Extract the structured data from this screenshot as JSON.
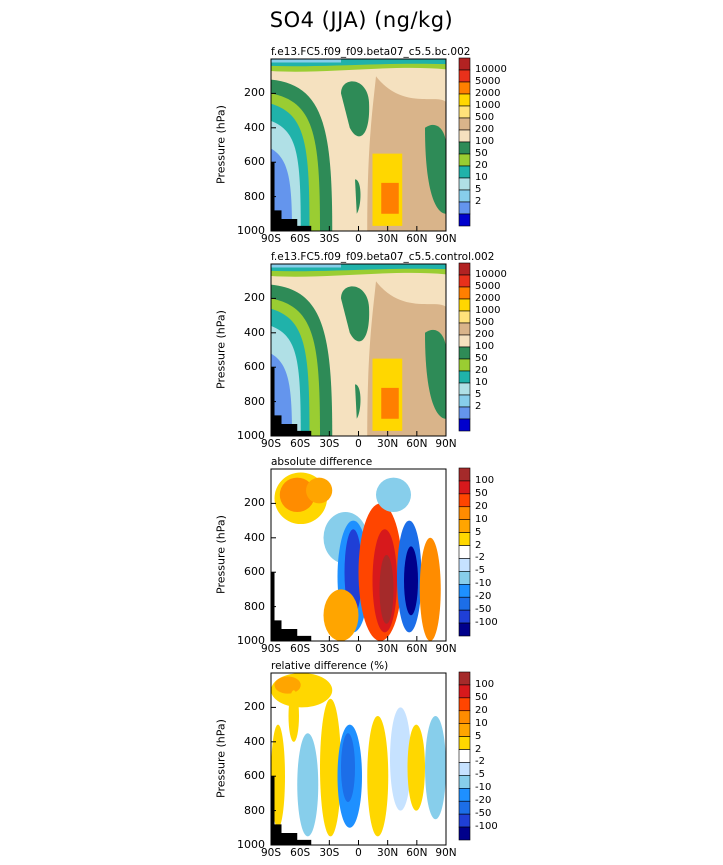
{
  "title": "SO4 (JJA) (ng/kg)",
  "chart_data": [
    {
      "type": "heatmap",
      "panel_title": "f.e13.FC5.f09_f09.beta07_c5.5.bc.002",
      "ylabel": "Pressure (hPa)",
      "xlabel": "",
      "xticks": [
        "90S",
        "60S",
        "30S",
        "0",
        "30N",
        "60N",
        "90N"
      ],
      "yticks": [
        "200",
        "400",
        "600",
        "800",
        "1000"
      ],
      "xlim": [
        -90,
        90
      ],
      "ylim": [
        1000,
        0
      ],
      "colorbar_levels": [
        "10000",
        "5000",
        "2000",
        "1000",
        "500",
        "200",
        "100",
        "50",
        "20",
        "10",
        "5",
        "2"
      ],
      "colorbar_colors": [
        "#b22222",
        "#e8311b",
        "#ff7f00",
        "#ffd700",
        "#ffe27a",
        "#d9b48a",
        "#f5e1bf",
        "#2e8b57",
        "#9acd32",
        "#20b2aa",
        "#b0e0e6",
        "#87ceeb",
        "#6495ed",
        "#0000cd"
      ]
    },
    {
      "type": "heatmap",
      "panel_title": "f.e13.FC5.f09_f09.beta07_c5.5.control.002",
      "ylabel": "Pressure (hPa)",
      "xlabel": "",
      "xticks": [
        "90S",
        "60S",
        "30S",
        "0",
        "30N",
        "60N",
        "90N"
      ],
      "yticks": [
        "200",
        "400",
        "600",
        "800",
        "1000"
      ],
      "xlim": [
        -90,
        90
      ],
      "ylim": [
        1000,
        0
      ],
      "colorbar_levels": [
        "10000",
        "5000",
        "2000",
        "1000",
        "500",
        "200",
        "100",
        "50",
        "20",
        "10",
        "5",
        "2"
      ],
      "colorbar_colors": [
        "#b22222",
        "#e8311b",
        "#ff7f00",
        "#ffd700",
        "#ffe27a",
        "#d9b48a",
        "#f5e1bf",
        "#2e8b57",
        "#9acd32",
        "#20b2aa",
        "#b0e0e6",
        "#87ceeb",
        "#6495ed",
        "#0000cd"
      ]
    },
    {
      "type": "heatmap",
      "panel_title": "absolute difference",
      "ylabel": "Pressure (hPa)",
      "xlabel": "",
      "xticks": [
        "90S",
        "60S",
        "30S",
        "0",
        "30N",
        "60N",
        "90N"
      ],
      "yticks": [
        "200",
        "400",
        "600",
        "800",
        "1000"
      ],
      "xlim": [
        -90,
        90
      ],
      "ylim": [
        1000,
        0
      ],
      "colorbar_levels": [
        "100",
        "50",
        "20",
        "10",
        "5",
        "2",
        "-2",
        "-5",
        "-10",
        "-20",
        "-50",
        "-100"
      ],
      "colorbar_colors": [
        "#a52a2a",
        "#d7191c",
        "#ff4500",
        "#ff8c00",
        "#ffa500",
        "#ffd700",
        "#ffffff",
        "#c6e2ff",
        "#87ceeb",
        "#1e90ff",
        "#1c6ee8",
        "#1f3fd6",
        "#00008b"
      ]
    },
    {
      "type": "heatmap",
      "panel_title": "relative difference (%)",
      "ylabel": "Pressure (hPa)",
      "xlabel": "",
      "xticks": [
        "90S",
        "60S",
        "30S",
        "0",
        "30N",
        "60N",
        "90N"
      ],
      "yticks": [
        "200",
        "400",
        "600",
        "800",
        "1000"
      ],
      "xlim": [
        -90,
        90
      ],
      "ylim": [
        1000,
        0
      ],
      "colorbar_levels": [
        "100",
        "50",
        "20",
        "10",
        "5",
        "2",
        "-2",
        "-5",
        "-10",
        "-20",
        "-50",
        "-100"
      ],
      "colorbar_colors": [
        "#a52a2a",
        "#d7191c",
        "#ff4500",
        "#ff8c00",
        "#ffa500",
        "#ffd700",
        "#ffffff",
        "#c6e2ff",
        "#87ceeb",
        "#1e90ff",
        "#1c6ee8",
        "#1f3fd6",
        "#00008b"
      ]
    }
  ]
}
